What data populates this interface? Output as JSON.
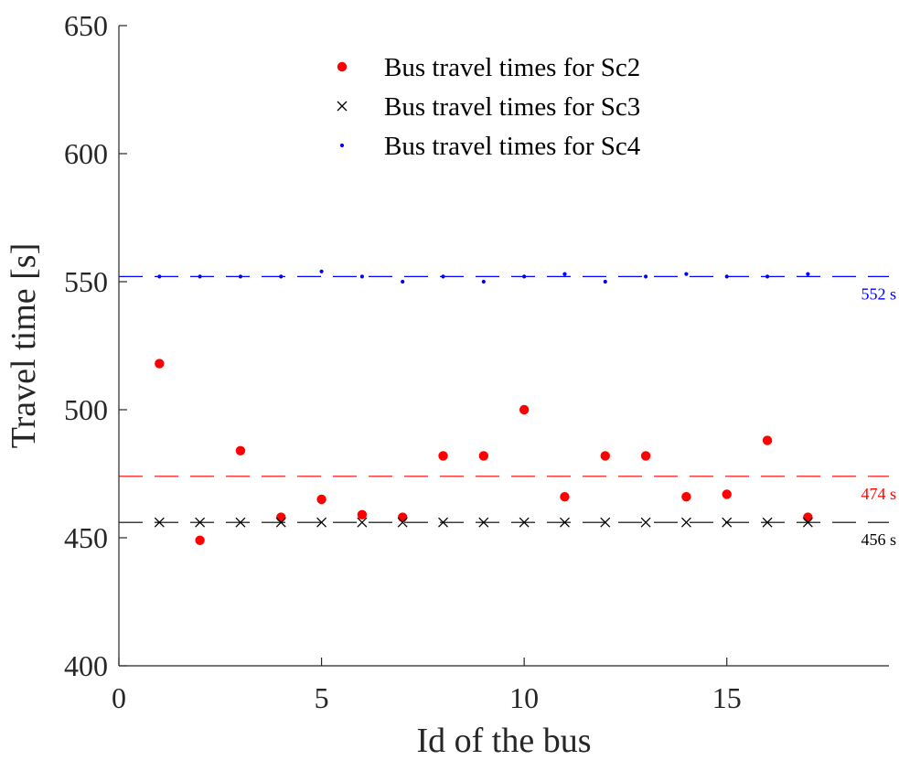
{
  "chart_data": {
    "type": "scatter",
    "xlabel": "Id of the bus",
    "ylabel": "Travel time [s]",
    "xlim": [
      0,
      19
    ],
    "ylim": [
      400,
      650
    ],
    "xticks": [
      0,
      5,
      10,
      15
    ],
    "yticks": [
      400,
      450,
      500,
      550,
      600,
      650
    ],
    "grid": false,
    "legend_position": "top-center",
    "series": [
      {
        "name": "Bus travel times for Sc2",
        "marker": "filled-circle",
        "color": "#ff0000",
        "x": [
          1,
          2,
          3,
          4,
          5,
          6,
          7,
          8,
          9,
          10,
          11,
          12,
          13,
          14,
          15,
          16,
          17
        ],
        "y": [
          518,
          449,
          484,
          458,
          465,
          459,
          458,
          482,
          482,
          500,
          466,
          482,
          482,
          466,
          467,
          488,
          458
        ]
      },
      {
        "name": "Bus travel times for Sc3",
        "marker": "x",
        "color": "#000000",
        "x": [
          1,
          2,
          3,
          4,
          5,
          6,
          7,
          8,
          9,
          10,
          11,
          12,
          13,
          14,
          15,
          16,
          17
        ],
        "y": [
          456,
          456,
          456,
          456,
          456,
          456,
          456,
          456,
          456,
          456,
          456,
          456,
          456,
          456,
          456,
          456,
          456
        ]
      },
      {
        "name": "Bus travel times for Sc4",
        "marker": "dot",
        "color": "#0000ff",
        "x": [
          1,
          2,
          3,
          4,
          5,
          6,
          7,
          8,
          9,
          10,
          11,
          12,
          13,
          14,
          15,
          16,
          17
        ],
        "y": [
          552,
          552,
          552,
          552,
          554,
          552,
          550,
          552,
          550,
          552,
          553,
          550,
          552,
          553,
          552,
          552,
          553
        ]
      }
    ],
    "reference_lines": [
      {
        "value": 552,
        "label": "552 s",
        "color": "#0000ff"
      },
      {
        "value": 474,
        "label": "474 s",
        "color": "#ff0000"
      },
      {
        "value": 456,
        "label": "456 s",
        "color": "#000000"
      }
    ]
  }
}
